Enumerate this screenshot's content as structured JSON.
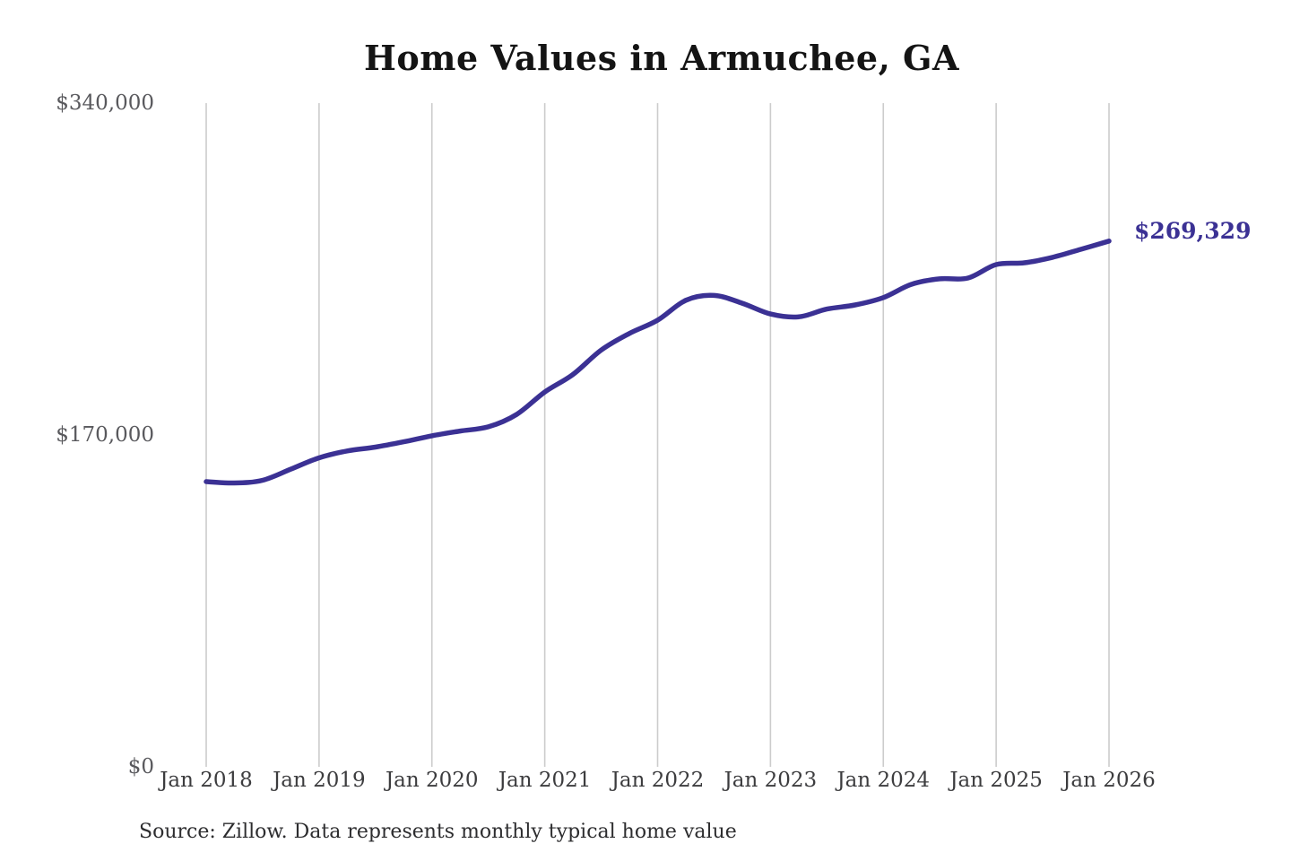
{
  "chart": {
    "title": "Home Values in Armuchee, GA",
    "end_label": "$269,329",
    "source_note": "Source: Zillow. Data represents monthly typical home value"
  },
  "chart_data": {
    "type": "line",
    "title": "Home Values in Armuchee, GA",
    "series_name": "Monthly typical home value",
    "x": [
      "Jan 2018",
      "Apr 2018",
      "Jul 2018",
      "Oct 2018",
      "Jan 2019",
      "Apr 2019",
      "Jul 2019",
      "Oct 2019",
      "Jan 2020",
      "Apr 2020",
      "Jul 2020",
      "Oct 2020",
      "Jan 2021",
      "Apr 2021",
      "Jul 2021",
      "Oct 2021",
      "Jan 2022",
      "Apr 2022",
      "Jul 2022",
      "Oct 2022",
      "Jan 2023",
      "Apr 2023",
      "Jul 2023",
      "Oct 2023",
      "Jan 2024",
      "Apr 2024",
      "Jul 2024",
      "Oct 2024",
      "Jan 2025",
      "Apr 2025",
      "Jul 2025",
      "Oct 2025",
      "Jan 2026"
    ],
    "values": [
      146100,
      145400,
      146800,
      152500,
      158300,
      161800,
      163800,
      166500,
      169600,
      172000,
      174200,
      180500,
      192000,
      201000,
      213500,
      222000,
      228800,
      239000,
      241500,
      237500,
      232000,
      230500,
      234500,
      236600,
      240400,
      247200,
      250000,
      250400,
      257300,
      258200,
      261000,
      265100,
      269329
    ],
    "last_value": 269329,
    "end_label": "$269,329",
    "xticks": [
      "Jan 2018",
      "Jan 2019",
      "Jan 2020",
      "Jan 2021",
      "Jan 2022",
      "Jan 2023",
      "Jan 2024",
      "Jan 2025",
      "Jan 2026"
    ],
    "yticks": [
      {
        "value": 0,
        "label": "$0"
      },
      {
        "value": 170000,
        "label": "$170,000"
      },
      {
        "value": 340000,
        "label": "$340,000"
      }
    ],
    "ylim": [
      0,
      340000
    ],
    "grid": "vertical-only",
    "legend": "none",
    "line_color": "#3b3194",
    "label_color": "#3b3194",
    "grid_color": "#cccccc",
    "source_note": "Source: Zillow. Data represents monthly typical home value"
  }
}
